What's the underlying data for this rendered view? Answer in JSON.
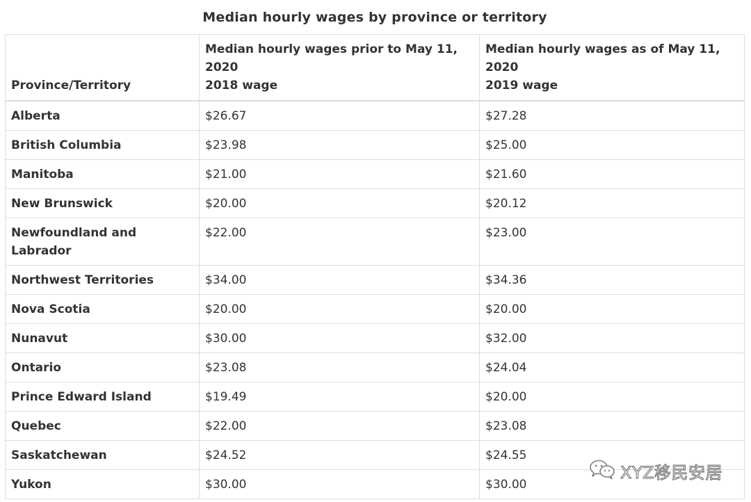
{
  "caption": "Median hourly wages by province or territory",
  "headers": {
    "col1": "Province/Territory",
    "col2": {
      "line1": "Median hourly wages prior to May 11,",
      "line2": "2020",
      "line3": "2018 wage"
    },
    "col3": {
      "line1": "Median hourly wages as of May 11,",
      "line2": "2020",
      "line3": "2019 wage"
    }
  },
  "rows": [
    {
      "province": "Alberta",
      "wage_prior": "$26.67",
      "wage_current": "$27.28"
    },
    {
      "province": "British Columbia",
      "wage_prior": "$23.98",
      "wage_current": "$25.00"
    },
    {
      "province": "Manitoba",
      "wage_prior": "$21.00",
      "wage_current": "$21.60"
    },
    {
      "province": "New Brunswick",
      "wage_prior": "$20.00",
      "wage_current": "$20.12"
    },
    {
      "province": "Newfoundland and Labrador",
      "wage_prior": "$22.00",
      "wage_current": "$23.00"
    },
    {
      "province": "Northwest Territories",
      "wage_prior": "$34.00",
      "wage_current": "$34.36"
    },
    {
      "province": "Nova Scotia",
      "wage_prior": "$20.00",
      "wage_current": "$20.00"
    },
    {
      "province": "Nunavut",
      "wage_prior": "$30.00",
      "wage_current": "$32.00"
    },
    {
      "province": "Ontario",
      "wage_prior": "$23.08",
      "wage_current": "$24.04"
    },
    {
      "province": "Prince Edward Island",
      "wage_prior": "$19.49",
      "wage_current": "$20.00"
    },
    {
      "province": "Quebec",
      "wage_prior": "$22.00",
      "wage_current": "$23.08"
    },
    {
      "province": "Saskatchewan",
      "wage_prior": "$24.52",
      "wage_current": "$24.55"
    },
    {
      "province": "Yukon",
      "wage_prior": "$30.00",
      "wage_current": "$30.00"
    }
  ],
  "watermark": {
    "icon": "wechat-icon",
    "text": "XYZ移民安居"
  }
}
